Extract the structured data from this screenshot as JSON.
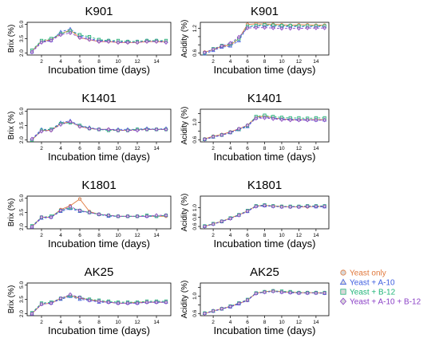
{
  "colors": {
    "yeast_only": "#e0783c",
    "yeast_a10": "#3f5fe0",
    "yeast_b12": "#22b57a",
    "yeast_a10_b12": "#8a3fc6",
    "point_fill": "#d8d8d8",
    "axis": "#000000"
  },
  "legend": {
    "position": "right",
    "entries": [
      {
        "label": "Yeast only",
        "marker": "circle",
        "color": "#e0783c"
      },
      {
        "label": "Yeast + A-10",
        "marker": "triangle",
        "color": "#3f5fe0"
      },
      {
        "label": "Yeast + B-12",
        "marker": "square",
        "color": "#22b57a"
      },
      {
        "label": "Yeast + A-10 + B-12",
        "marker": "diamond",
        "color": "#8a3fc6"
      }
    ]
  },
  "chart_data": [
    {
      "type": "line",
      "title": "K901",
      "xlabel": "Incubation time (days)",
      "ylabel": "Brix (%)",
      "xlim": [
        0.5,
        15.5
      ],
      "ylim": [
        1.8,
        5.2
      ],
      "xticks": [
        2,
        4,
        6,
        8,
        10,
        12,
        14
      ],
      "yticks": [
        2.0,
        3.5,
        5.0
      ],
      "ytick_labels": [
        "2.0",
        "3.5",
        "5.0"
      ],
      "grid": false,
      "x": [
        1,
        2,
        3,
        4,
        5,
        6,
        7,
        8,
        9,
        10,
        11,
        12,
        13,
        14,
        15
      ],
      "series": [
        {
          "name": "Yeast only",
          "values": [
            2.2,
            3.2,
            3.4,
            4.0,
            4.4,
            3.6,
            3.4,
            3.2,
            3.2,
            3.1,
            3.1,
            3.1,
            3.2,
            3.2,
            3.2
          ]
        },
        {
          "name": "Yeast + A-10",
          "values": [
            2.1,
            3.2,
            3.3,
            4.2,
            4.5,
            3.8,
            3.5,
            3.3,
            3.3,
            3.2,
            3.2,
            3.2,
            3.3,
            3.3,
            3.2
          ]
        },
        {
          "name": "Yeast + B-12",
          "values": [
            2.3,
            3.3,
            3.5,
            4.0,
            4.3,
            3.9,
            3.7,
            3.4,
            3.3,
            3.3,
            3.2,
            3.2,
            3.3,
            3.3,
            3.3
          ]
        },
        {
          "name": "Yeast + A-10 + B-12",
          "values": [
            2.1,
            3.1,
            3.3,
            3.9,
            4.1,
            3.6,
            3.4,
            3.2,
            3.2,
            3.1,
            3.1,
            3.1,
            3.2,
            3.2,
            3.1
          ]
        }
      ]
    },
    {
      "type": "line",
      "title": "K901",
      "xlabel": "Incubation time (days)",
      "ylabel": "Acidity (%)",
      "xlim": [
        0.5,
        15.5
      ],
      "ylim": [
        0.55,
        1.35
      ],
      "xticks": [
        2,
        4,
        6,
        8,
        10,
        12,
        14
      ],
      "yticks": [
        0.6,
        0.8,
        1.0,
        1.2
      ],
      "ytick_labels": [
        "0.6",
        "",
        "",
        "1.2"
      ],
      "grid": false,
      "x": [
        1,
        2,
        3,
        4,
        5,
        6,
        7,
        8,
        9,
        10,
        11,
        12,
        13,
        14,
        15
      ],
      "series": [
        {
          "name": "Yeast only",
          "values": [
            0.62,
            0.68,
            0.76,
            0.79,
            0.95,
            1.3,
            1.31,
            1.31,
            1.3,
            1.29,
            1.28,
            1.29,
            1.29,
            1.28,
            1.28
          ]
        },
        {
          "name": "Yeast + A-10",
          "values": [
            0.58,
            0.66,
            0.74,
            0.77,
            0.9,
            1.24,
            1.26,
            1.27,
            1.26,
            1.25,
            1.25,
            1.25,
            1.25,
            1.25,
            1.25
          ]
        },
        {
          "name": "Yeast + B-12",
          "values": [
            0.6,
            0.7,
            0.78,
            0.82,
            0.95,
            1.25,
            1.27,
            1.29,
            1.28,
            1.27,
            1.27,
            1.26,
            1.26,
            1.26,
            1.26
          ]
        },
        {
          "name": "Yeast + A-10 + B-12",
          "values": [
            0.61,
            0.69,
            0.77,
            0.84,
            0.99,
            1.21,
            1.22,
            1.22,
            1.21,
            1.2,
            1.2,
            1.2,
            1.21,
            1.21,
            1.21
          ]
        }
      ]
    },
    {
      "type": "line",
      "title": "K1401",
      "xlabel": "Incubation time (days)",
      "ylabel": "Brix (%)",
      "xlim": [
        0.5,
        15.5
      ],
      "ylim": [
        1.8,
        5.2
      ],
      "xticks": [
        2,
        4,
        6,
        8,
        10,
        12,
        14
      ],
      "yticks": [
        2.0,
        3.5,
        5.0
      ],
      "ytick_labels": [
        "2.0",
        "3.5",
        "5.0"
      ],
      "grid": false,
      "x": [
        1,
        2,
        3,
        4,
        5,
        6,
        7,
        8,
        9,
        10,
        11,
        12,
        13,
        14,
        15
      ],
      "series": [
        {
          "name": "Yeast only",
          "values": [
            2.0,
            3.0,
            3.0,
            3.7,
            3.9,
            3.4,
            3.2,
            3.1,
            3.1,
            3.0,
            3.0,
            3.1,
            3.1,
            3.1,
            3.1
          ]
        },
        {
          "name": "Yeast + A-10",
          "values": [
            2.1,
            3.1,
            3.1,
            3.8,
            4.0,
            3.5,
            3.3,
            3.1,
            3.1,
            3.1,
            3.1,
            3.1,
            3.2,
            3.1,
            3.2
          ]
        },
        {
          "name": "Yeast + B-12",
          "values": [
            2.0,
            3.0,
            3.1,
            3.7,
            3.8,
            3.5,
            3.2,
            3.1,
            3.0,
            3.0,
            3.0,
            3.1,
            3.1,
            3.1,
            3.1
          ]
        },
        {
          "name": "Yeast + A-10 + B-12",
          "values": [
            2.1,
            2.9,
            3.0,
            3.6,
            3.9,
            3.4,
            3.2,
            3.1,
            3.1,
            3.0,
            3.0,
            3.0,
            3.1,
            3.1,
            3.1
          ]
        }
      ]
    },
    {
      "type": "line",
      "title": "K1401",
      "xlabel": "Incubation time (days)",
      "ylabel": "Acidity (%)",
      "xlim": [
        0.5,
        15.5
      ],
      "ylim": [
        0.55,
        1.3
      ],
      "xticks": [
        2,
        4,
        6,
        8,
        10,
        12,
        14
      ],
      "yticks": [
        0.6,
        0.8,
        1.0,
        1.2
      ],
      "ytick_labels": [
        "0.6",
        "",
        "1.0",
        ""
      ],
      "grid": false,
      "x": [
        1,
        2,
        3,
        4,
        5,
        6,
        7,
        8,
        9,
        10,
        11,
        12,
        13,
        14,
        15
      ],
      "series": [
        {
          "name": "Yeast only",
          "values": [
            0.62,
            0.68,
            0.72,
            0.78,
            0.85,
            0.93,
            1.12,
            1.14,
            1.1,
            1.08,
            1.06,
            1.06,
            1.06,
            1.06,
            1.06
          ]
        },
        {
          "name": "Yeast + A-10",
          "values": [
            0.6,
            0.66,
            0.7,
            0.76,
            0.83,
            0.9,
            1.1,
            1.12,
            1.1,
            1.08,
            1.07,
            1.06,
            1.06,
            1.05,
            1.05
          ]
        },
        {
          "name": "Yeast + B-12",
          "values": [
            0.61,
            0.67,
            0.71,
            0.77,
            0.84,
            0.92,
            1.13,
            1.16,
            1.13,
            1.11,
            1.1,
            1.1,
            1.09,
            1.1,
            1.1
          ]
        },
        {
          "name": "Yeast + A-10 + B-12",
          "values": [
            0.61,
            0.67,
            0.71,
            0.77,
            0.85,
            0.93,
            1.09,
            1.1,
            1.08,
            1.06,
            1.05,
            1.05,
            1.05,
            1.05,
            1.05
          ]
        }
      ]
    },
    {
      "type": "line",
      "title": "K1801",
      "xlabel": "Incubation time (days)",
      "ylabel": "Brix (%)",
      "xlim": [
        0.5,
        15.5
      ],
      "ylim": [
        1.8,
        5.2
      ],
      "xticks": [
        2,
        4,
        6,
        8,
        10,
        12,
        14
      ],
      "yticks": [
        2.0,
        3.5,
        5.0
      ],
      "ytick_labels": [
        "2.0",
        "3.5",
        "5.0"
      ],
      "grid": false,
      "x": [
        1,
        2,
        3,
        4,
        5,
        6,
        7,
        8,
        9,
        10,
        11,
        12,
        13,
        14,
        15
      ],
      "series": [
        {
          "name": "Yeast only",
          "values": [
            2.0,
            3.0,
            3.0,
            3.8,
            4.2,
            4.9,
            3.6,
            3.3,
            3.2,
            3.1,
            3.1,
            3.1,
            3.1,
            3.1,
            3.1
          ]
        },
        {
          "name": "Yeast + A-10",
          "values": [
            2.0,
            2.9,
            3.0,
            3.6,
            3.9,
            3.6,
            3.5,
            3.3,
            3.1,
            3.1,
            3.1,
            3.1,
            3.1,
            3.1,
            3.2
          ]
        },
        {
          "name": "Yeast + B-12",
          "values": [
            2.1,
            3.0,
            3.1,
            3.7,
            4.0,
            3.7,
            3.5,
            3.3,
            3.2,
            3.1,
            3.1,
            3.1,
            3.2,
            3.1,
            3.2
          ]
        },
        {
          "name": "Yeast + A-10 + B-12",
          "values": [
            2.0,
            3.0,
            3.0,
            3.7,
            4.1,
            3.7,
            3.5,
            3.3,
            3.2,
            3.1,
            3.1,
            3.1,
            3.1,
            3.2,
            3.2
          ]
        }
      ]
    },
    {
      "type": "line",
      "title": "K1801",
      "xlabel": "Incubation time (days)",
      "ylabel": "Acidity (%)",
      "xlim": [
        0.5,
        15.5
      ],
      "ylim": [
        0.55,
        1.25
      ],
      "xticks": [
        2,
        4,
        6,
        8,
        10,
        12,
        14
      ],
      "yticks": [
        0.6,
        0.8,
        1.0
      ],
      "ytick_labels": [
        "0.6",
        "0.8",
        "1.0"
      ],
      "grid": false,
      "x": [
        1,
        2,
        3,
        4,
        5,
        6,
        7,
        8,
        9,
        10,
        11,
        12,
        13,
        14,
        15
      ],
      "series": [
        {
          "name": "Yeast only",
          "values": [
            0.6,
            0.66,
            0.71,
            0.78,
            0.85,
            0.93,
            1.04,
            1.05,
            1.04,
            1.03,
            1.02,
            1.02,
            1.02,
            1.03,
            1.03
          ]
        },
        {
          "name": "Yeast + A-10",
          "values": [
            0.6,
            0.65,
            0.7,
            0.77,
            0.84,
            0.92,
            1.03,
            1.04,
            1.03,
            1.02,
            1.02,
            1.02,
            1.03,
            1.02,
            1.02
          ]
        },
        {
          "name": "Yeast + B-12",
          "values": [
            0.61,
            0.66,
            0.71,
            0.78,
            0.85,
            0.94,
            1.04,
            1.06,
            1.04,
            1.03,
            1.03,
            1.03,
            1.04,
            1.04,
            1.04
          ]
        },
        {
          "name": "Yeast + A-10 + B-12",
          "values": [
            0.6,
            0.65,
            0.71,
            0.77,
            0.84,
            0.93,
            1.03,
            1.05,
            1.03,
            1.02,
            1.02,
            1.02,
            1.03,
            1.03,
            1.03
          ]
        }
      ]
    },
    {
      "type": "line",
      "title": "AK25",
      "xlabel": "Incubation time (days)",
      "ylabel": "Brix (%)",
      "xlim": [
        0.5,
        15.5
      ],
      "ylim": [
        1.8,
        5.2
      ],
      "xticks": [
        2,
        4,
        6,
        8,
        10,
        12,
        14
      ],
      "yticks": [
        2.0,
        3.5,
        5.0
      ],
      "ytick_labels": [
        "2.0",
        "3.5",
        "5.0"
      ],
      "grid": false,
      "x": [
        1,
        2,
        3,
        4,
        5,
        6,
        7,
        8,
        9,
        10,
        11,
        12,
        13,
        14,
        15
      ],
      "series": [
        {
          "name": "Yeast only",
          "values": [
            2.0,
            3.0,
            3.1,
            3.6,
            3.9,
            3.6,
            3.5,
            3.3,
            3.2,
            3.1,
            3.1,
            3.2,
            3.2,
            3.2,
            3.2
          ]
        },
        {
          "name": "Yeast + A-10",
          "values": [
            2.0,
            3.0,
            3.1,
            3.5,
            3.8,
            3.5,
            3.4,
            3.2,
            3.2,
            3.1,
            3.1,
            3.1,
            3.2,
            3.2,
            3.2
          ]
        },
        {
          "name": "Yeast + B-12",
          "values": [
            2.1,
            3.1,
            3.2,
            3.6,
            3.9,
            3.7,
            3.5,
            3.4,
            3.3,
            3.2,
            3.2,
            3.2,
            3.3,
            3.3,
            3.3
          ]
        },
        {
          "name": "Yeast + A-10 + B-12",
          "values": [
            2.0,
            3.0,
            3.1,
            3.6,
            4.0,
            3.7,
            3.4,
            3.3,
            3.2,
            3.1,
            3.1,
            3.1,
            3.2,
            3.2,
            3.2
          ]
        }
      ]
    },
    {
      "type": "line",
      "title": "AK25",
      "xlabel": "Incubation time (days)",
      "ylabel": "Acidity (%)",
      "xlim": [
        0.5,
        15.5
      ],
      "ylim": [
        0.55,
        1.3
      ],
      "xticks": [
        2,
        4,
        6,
        8,
        10,
        12,
        14
      ],
      "yticks": [
        0.6,
        0.8,
        1.0,
        1.2
      ],
      "ytick_labels": [
        "0.6",
        "",
        "1.0",
        ""
      ],
      "grid": false,
      "x": [
        1,
        2,
        3,
        4,
        5,
        6,
        7,
        8,
        9,
        10,
        11,
        12,
        13,
        14,
        15
      ],
      "series": [
        {
          "name": "Yeast only",
          "values": [
            0.6,
            0.66,
            0.71,
            0.76,
            0.83,
            0.9,
            1.07,
            1.1,
            1.12,
            1.1,
            1.09,
            1.08,
            1.08,
            1.08,
            1.07
          ]
        },
        {
          "name": "Yeast + A-10",
          "values": [
            0.6,
            0.65,
            0.7,
            0.75,
            0.82,
            0.9,
            1.06,
            1.09,
            1.11,
            1.09,
            1.08,
            1.07,
            1.07,
            1.07,
            1.06
          ]
        },
        {
          "name": "Yeast + B-12",
          "values": [
            0.61,
            0.66,
            0.71,
            0.77,
            0.84,
            0.92,
            1.07,
            1.1,
            1.12,
            1.11,
            1.1,
            1.08,
            1.08,
            1.08,
            1.08
          ]
        },
        {
          "name": "Yeast + A-10 + B-12",
          "values": [
            0.6,
            0.66,
            0.71,
            0.76,
            0.83,
            0.91,
            1.06,
            1.09,
            1.11,
            1.09,
            1.08,
            1.07,
            1.07,
            1.07,
            1.07
          ]
        }
      ]
    }
  ]
}
